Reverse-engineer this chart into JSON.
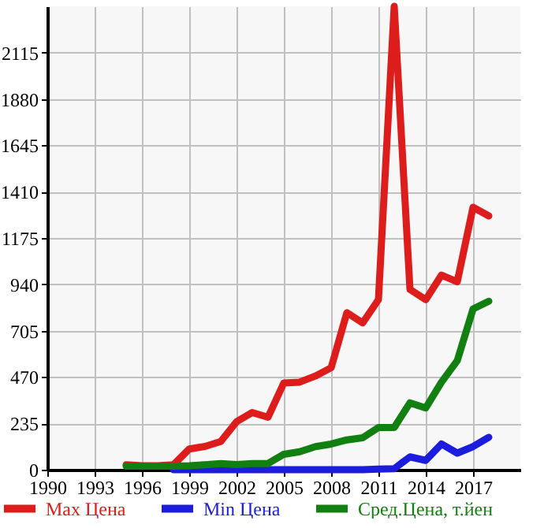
{
  "chart_data": {
    "type": "line",
    "x": [
      1995,
      1996,
      1997,
      1998,
      1999,
      2000,
      2001,
      2002,
      2003,
      2004,
      2005,
      2006,
      2007,
      2008,
      2009,
      2010,
      2011,
      2012,
      2013,
      2014,
      2015,
      2016,
      2017,
      2018
    ],
    "series": [
      {
        "name": "Max Цена",
        "color": "#dd1c1c",
        "values": [
          25,
          20,
          20,
          25,
          105,
          118,
          143,
          243,
          290,
          266,
          440,
          444,
          475,
          517,
          796,
          744,
          862,
          2350,
          914,
          862,
          987,
          953,
          1331,
          1287
        ]
      },
      {
        "name": "Min Цена",
        "color": "#1c1cdd",
        "values": [
          null,
          null,
          null,
          0,
          0,
          0,
          0,
          0,
          0,
          0,
          0,
          0,
          0,
          0,
          0,
          0,
          3,
          5,
          65,
          47,
          130,
          84,
          117,
          164
        ]
      },
      {
        "name": "Сред.Цена, т.йен",
        "color": "#118011",
        "values": [
          18,
          18,
          18,
          18,
          20,
          25,
          31,
          26,
          31,
          31,
          78,
          91,
          117,
          130,
          151,
          162,
          214,
          214,
          339,
          313,
          444,
          553,
          815,
          854
        ]
      }
    ],
    "xlim": [
      1990,
      2020
    ],
    "xticks": [
      1990,
      1993,
      1996,
      1999,
      2002,
      2005,
      2008,
      2011,
      2014,
      2017
    ],
    "ylim": [
      0,
      2350
    ],
    "yticks": [
      0,
      235,
      470,
      705,
      940,
      1175,
      1410,
      1645,
      1880,
      2115
    ],
    "grid": true,
    "legend": "bottom"
  }
}
